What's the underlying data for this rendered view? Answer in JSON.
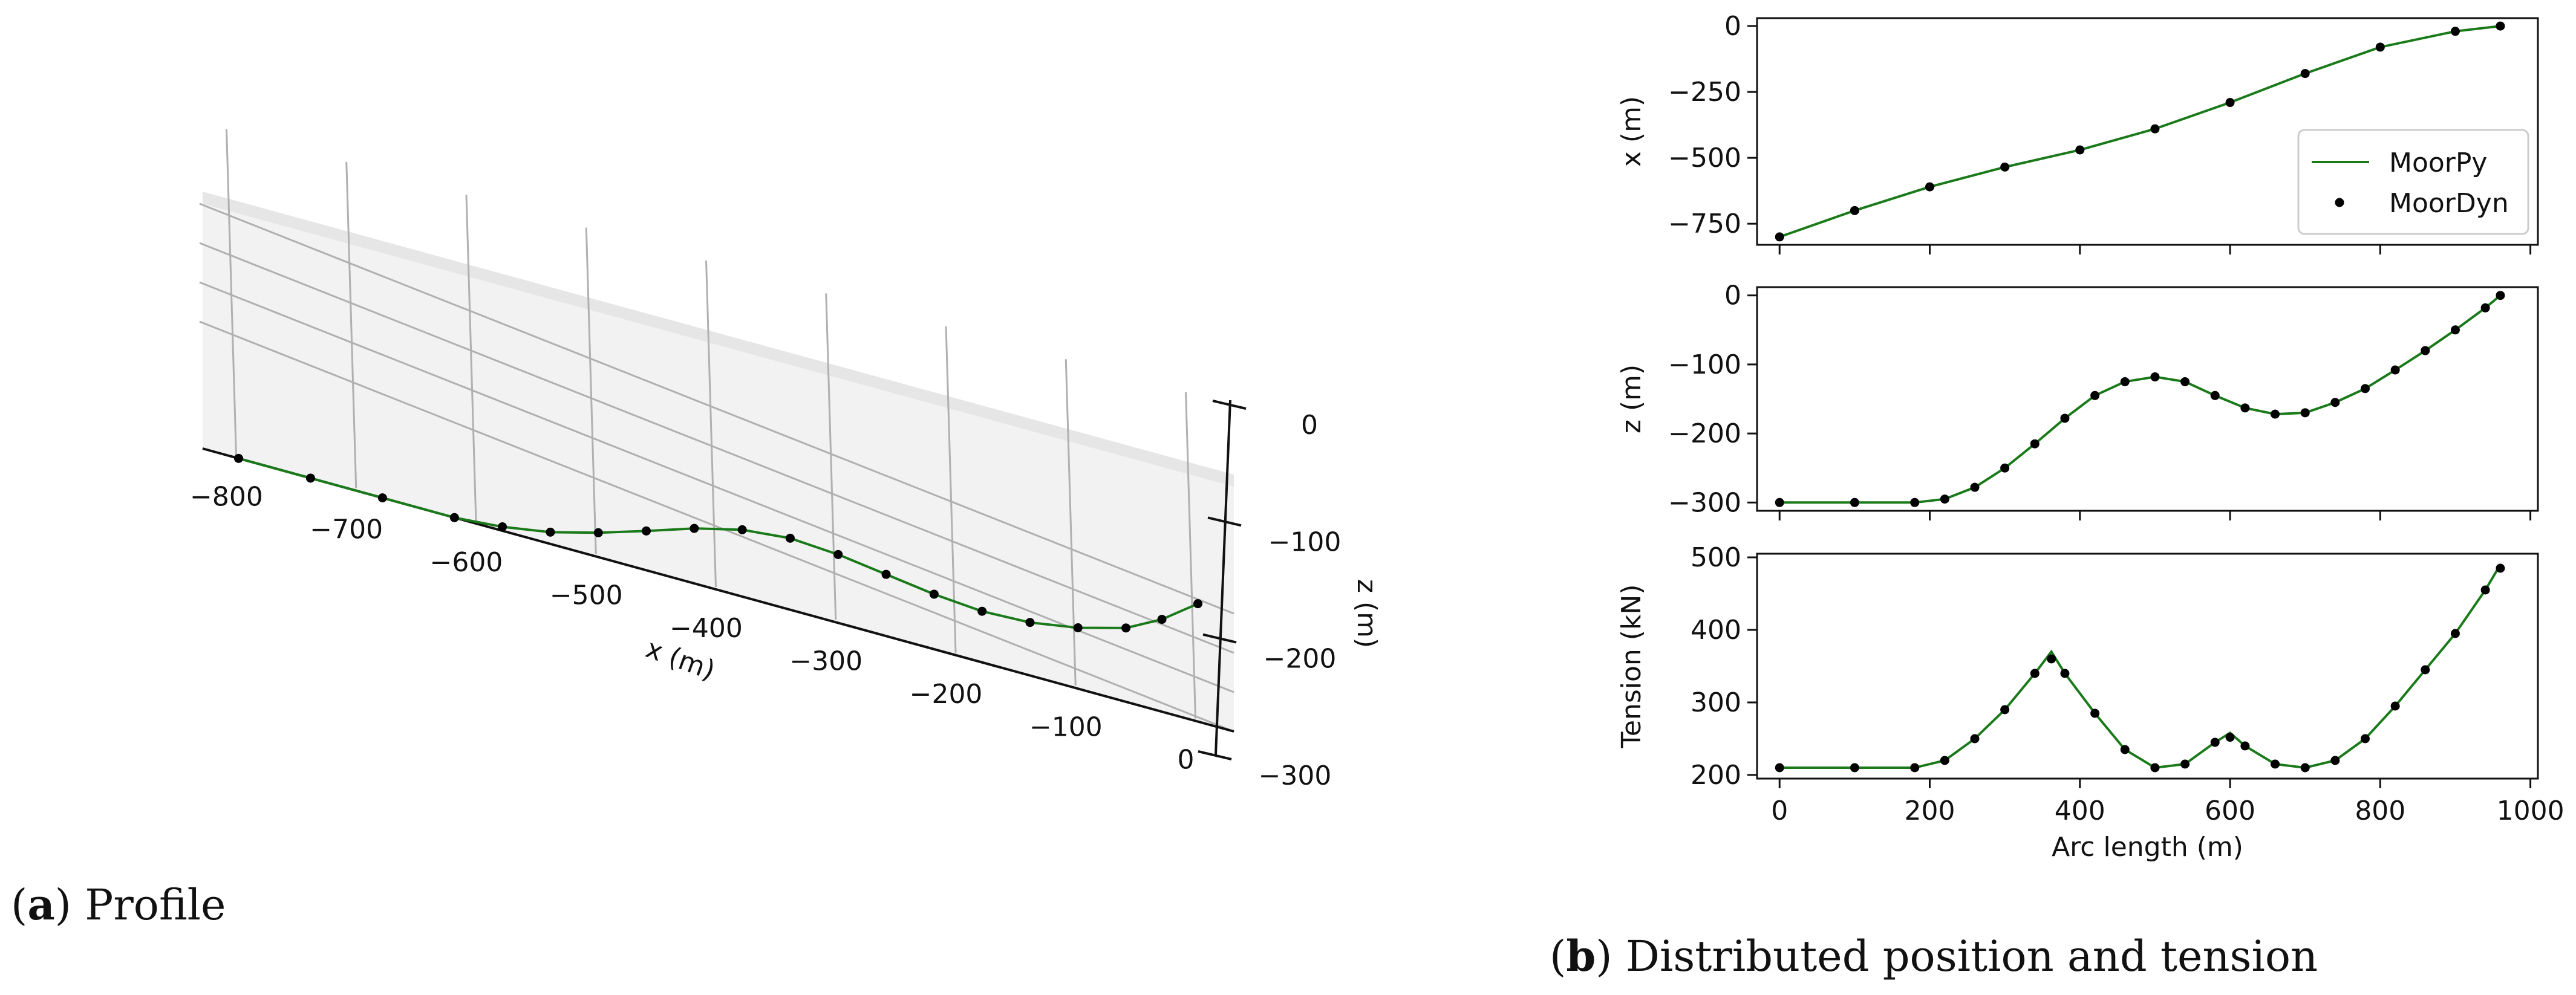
{
  "captions": {
    "a_letter": "a",
    "a_text": "Profile",
    "b_letter": "b",
    "b_text": "Distributed position and tension"
  },
  "colors": {
    "moorpy": "#1a7a1a",
    "moordyn": "#000000",
    "pane": "#f2f2f2",
    "grid": "#b0b0b0"
  },
  "chart_data": [
    {
      "type": "line",
      "projection": "3d",
      "xlabel": "x (m)",
      "zlabel": "z (m)",
      "x_ticks": [
        -800,
        -700,
        -600,
        -500,
        -400,
        -300,
        -200,
        -100,
        0
      ],
      "z_ticks": [
        0,
        -100,
        -200,
        -300
      ],
      "xlim": [
        -830,
        30
      ],
      "zlim": [
        -300,
        0
      ],
      "grid": true,
      "series": [
        {
          "name": "MoorPy",
          "style": "line",
          "x": [
            -800,
            -740,
            -680,
            -620,
            -580,
            -540,
            -500,
            -460,
            -420,
            -380,
            -340,
            -300,
            -260,
            -220,
            -180,
            -140,
            -100,
            -60,
            -30,
            0
          ],
          "z": [
            -300,
            -300,
            -300,
            -300,
            -290,
            -270,
            -238,
            -200,
            -160,
            -130,
            -118,
            -126,
            -143,
            -160,
            -170,
            -165,
            -145,
            -112,
            -65,
            0
          ]
        },
        {
          "name": "MoorDyn",
          "style": "points",
          "x": [
            -800,
            -740,
            -680,
            -620,
            -580,
            -540,
            -500,
            -460,
            -420,
            -380,
            -340,
            -300,
            -260,
            -220,
            -180,
            -140,
            -100,
            -60,
            -30,
            0
          ],
          "z": [
            -300,
            -300,
            -300,
            -300,
            -290,
            -270,
            -238,
            -200,
            -160,
            -130,
            -118,
            -126,
            -143,
            -160,
            -170,
            -165,
            -145,
            -112,
            -65,
            0
          ]
        }
      ]
    },
    {
      "type": "line",
      "ylabel": "x (m)",
      "xlim": [
        -30,
        1010
      ],
      "ylim": [
        -830,
        30
      ],
      "y_ticks": [
        0,
        -250,
        -500,
        -750
      ],
      "grid": false,
      "legend": "center-right",
      "series": [
        {
          "name": "MoorPy",
          "style": "line",
          "x": [
            0,
            100,
            200,
            300,
            400,
            500,
            600,
            700,
            800,
            900,
            960
          ],
          "values": [
            -800,
            -700,
            -610,
            -535,
            -470,
            -390,
            -290,
            -180,
            -80,
            -20,
            0
          ]
        },
        {
          "name": "MoorDyn",
          "style": "points",
          "x": [
            0,
            100,
            200,
            300,
            400,
            500,
            600,
            700,
            800,
            900,
            960
          ],
          "values": [
            -800,
            -700,
            -610,
            -535,
            -470,
            -390,
            -290,
            -180,
            -80,
            -20,
            0
          ]
        }
      ]
    },
    {
      "type": "line",
      "ylabel": "z (m)",
      "xlim": [
        -30,
        1010
      ],
      "ylim": [
        -312,
        12
      ],
      "y_ticks": [
        0,
        -100,
        -200,
        -300
      ],
      "grid": false,
      "series": [
        {
          "name": "MoorPy",
          "style": "line",
          "x": [
            0,
            100,
            180,
            220,
            260,
            300,
            340,
            380,
            420,
            460,
            500,
            540,
            580,
            620,
            660,
            700,
            740,
            780,
            820,
            860,
            900,
            940,
            960
          ],
          "values": [
            -300,
            -300,
            -300,
            -295,
            -278,
            -250,
            -215,
            -178,
            -145,
            -125,
            -118,
            -125,
            -145,
            -163,
            -172,
            -170,
            -155,
            -135,
            -108,
            -80,
            -50,
            -18,
            0
          ]
        },
        {
          "name": "MoorDyn",
          "style": "points",
          "x": [
            0,
            100,
            180,
            220,
            260,
            300,
            340,
            380,
            420,
            460,
            500,
            540,
            580,
            620,
            660,
            700,
            740,
            780,
            820,
            860,
            900,
            940,
            960
          ],
          "values": [
            -300,
            -300,
            -300,
            -295,
            -278,
            -250,
            -215,
            -178,
            -145,
            -125,
            -118,
            -125,
            -145,
            -163,
            -172,
            -170,
            -155,
            -135,
            -108,
            -80,
            -50,
            -18,
            0
          ]
        }
      ]
    },
    {
      "type": "line",
      "ylabel": "Tension (kN)",
      "xlabel": "Arc length (m)",
      "xlim": [
        -30,
        1010
      ],
      "ylim": [
        195,
        505
      ],
      "x_ticks": [
        0,
        200,
        400,
        600,
        800,
        1000
      ],
      "y_ticks": [
        200,
        300,
        400,
        500
      ],
      "grid": false,
      "series": [
        {
          "name": "MoorPy",
          "style": "line",
          "x": [
            0,
            100,
            180,
            220,
            260,
            300,
            340,
            362,
            380,
            420,
            460,
            500,
            540,
            580,
            600,
            620,
            660,
            700,
            740,
            780,
            820,
            860,
            900,
            940,
            960
          ],
          "values": [
            210,
            210,
            210,
            220,
            250,
            290,
            340,
            370,
            340,
            285,
            235,
            210,
            215,
            245,
            258,
            240,
            215,
            210,
            220,
            250,
            295,
            345,
            395,
            455,
            490
          ]
        },
        {
          "name": "MoorDyn",
          "style": "points",
          "x": [
            0,
            100,
            180,
            220,
            260,
            300,
            340,
            362,
            380,
            420,
            460,
            500,
            540,
            580,
            600,
            620,
            660,
            700,
            740,
            780,
            820,
            860,
            900,
            940,
            960
          ],
          "values": [
            210,
            210,
            210,
            220,
            250,
            290,
            340,
            360,
            340,
            285,
            235,
            210,
            215,
            245,
            252,
            240,
            215,
            210,
            220,
            250,
            295,
            345,
            395,
            455,
            485
          ]
        }
      ]
    }
  ]
}
